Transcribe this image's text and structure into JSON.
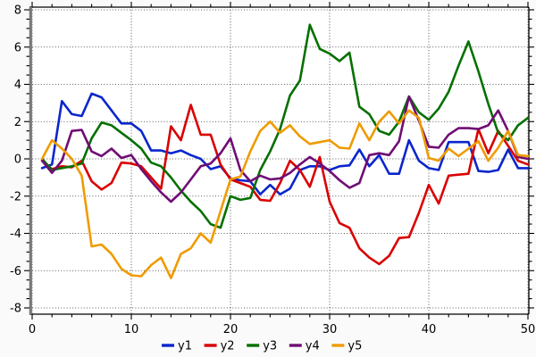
{
  "chart_data": {
    "type": "line",
    "title": "",
    "xlabel": "",
    "ylabel": "",
    "xlim": [
      0,
      50
    ],
    "ylim": [
      -8,
      8
    ],
    "x_major_ticks": [
      0,
      10,
      20,
      30,
      40,
      50
    ],
    "y_major_ticks": [
      -8,
      -6,
      -4,
      -2,
      0,
      2,
      4,
      6,
      8
    ],
    "x_minor_step": 2,
    "y_minor_step": 0.5,
    "grid": "dotted-major",
    "legend_position": "bottom-center",
    "colors": {
      "frame": "#000000",
      "left_spine": "#7a7a7a",
      "grid": "#2a2a2a",
      "plot_bg": "#ffffff",
      "outer_bg": "#fafafa"
    },
    "x": [
      1,
      2,
      3,
      4,
      5,
      6,
      7,
      8,
      9,
      10,
      11,
      12,
      13,
      14,
      15,
      16,
      17,
      18,
      19,
      20,
      21,
      22,
      23,
      24,
      25,
      26,
      27,
      28,
      29,
      30,
      31,
      32,
      33,
      34,
      35,
      36,
      37,
      38,
      39,
      40,
      41,
      42,
      43,
      44,
      45,
      46,
      47,
      48,
      49,
      50
    ],
    "series": [
      {
        "name": "y1",
        "color": "#0a26cc",
        "values": [
          -0.5,
          -0.3,
          3.1,
          2.4,
          2.3,
          3.5,
          3.3,
          2.6,
          1.9,
          1.9,
          1.5,
          0.45,
          0.45,
          0.3,
          0.45,
          0.2,
          0.0,
          -0.55,
          -0.4,
          -1.05,
          -1.15,
          -1.2,
          -1.9,
          -1.4,
          -1.9,
          -1.6,
          -0.6,
          -0.4,
          -0.4,
          -0.6,
          -0.4,
          -0.35,
          0.5,
          -0.4,
          0.2,
          -0.8,
          -0.8,
          1.0,
          -0.1,
          -0.5,
          -0.6,
          0.9,
          0.9,
          0.9,
          -0.65,
          -0.7,
          -0.6,
          0.5,
          -0.5,
          -0.5
        ]
      },
      {
        "name": "y2",
        "color": "#d90000",
        "values": [
          -0.1,
          -0.55,
          -0.4,
          -0.45,
          -0.1,
          -1.2,
          -1.65,
          -1.3,
          -0.2,
          -0.25,
          -0.4,
          -1.0,
          -1.6,
          1.75,
          1.0,
          2.9,
          1.3,
          1.3,
          -0.3,
          -1.1,
          -1.3,
          -1.5,
          -2.2,
          -2.25,
          -1.3,
          -0.1,
          -0.6,
          -1.5,
          0.1,
          -2.3,
          -3.45,
          -3.7,
          -4.8,
          -5.3,
          -5.65,
          -5.2,
          -4.25,
          -4.2,
          -2.9,
          -1.4,
          -2.4,
          -0.9,
          -0.85,
          -0.8,
          1.6,
          0.3,
          1.5,
          0.7,
          -0.1,
          -0.3
        ]
      },
      {
        "name": "y3",
        "color": "#067000",
        "values": [
          0.0,
          -0.6,
          -0.5,
          -0.4,
          -0.25,
          1.1,
          1.95,
          1.8,
          1.4,
          1.0,
          0.55,
          -0.2,
          -0.4,
          -1.0,
          -1.7,
          -2.3,
          -2.8,
          -3.5,
          -3.7,
          -2.0,
          -2.2,
          -2.1,
          -0.6,
          0.4,
          1.6,
          3.4,
          4.2,
          7.2,
          5.9,
          5.65,
          5.25,
          5.7,
          2.8,
          2.4,
          1.5,
          1.3,
          2.0,
          3.35,
          2.5,
          2.1,
          2.7,
          3.6,
          5.0,
          6.3,
          4.7,
          2.95,
          1.4,
          1.0,
          1.8,
          2.2
        ]
      },
      {
        "name": "y4",
        "color": "#700d75",
        "values": [
          -0.1,
          -0.75,
          -0.1,
          1.5,
          1.55,
          0.4,
          0.15,
          0.55,
          0.05,
          0.2,
          -0.55,
          -1.2,
          -1.8,
          -2.3,
          -1.8,
          -1.1,
          -0.4,
          -0.25,
          0.3,
          1.1,
          -0.6,
          -1.2,
          -0.9,
          -1.1,
          -1.05,
          -0.75,
          -0.3,
          0.1,
          -0.25,
          -0.65,
          -1.15,
          -1.55,
          -1.3,
          0.2,
          0.3,
          0.2,
          0.95,
          3.35,
          2.05,
          0.65,
          0.6,
          1.3,
          1.65,
          1.65,
          1.6,
          1.8,
          2.6,
          1.5,
          0.1,
          0.0
        ]
      },
      {
        "name": "y5",
        "color": "#ef9b00",
        "values": [
          0.0,
          1.0,
          0.55,
          0.0,
          -0.9,
          -4.7,
          -4.6,
          -5.1,
          -5.9,
          -6.25,
          -6.3,
          -5.7,
          -5.3,
          -6.4,
          -5.1,
          -4.8,
          -4.0,
          -4.5,
          -2.8,
          -1.1,
          -0.95,
          0.4,
          1.5,
          2.0,
          1.4,
          1.8,
          1.2,
          0.8,
          0.9,
          1.0,
          0.6,
          0.55,
          1.9,
          1.0,
          2.0,
          2.55,
          1.9,
          2.6,
          2.2,
          0.05,
          -0.1,
          0.55,
          0.15,
          0.55,
          0.95,
          -0.1,
          0.6,
          1.5,
          0.2,
          0.15
        ]
      }
    ],
    "legend": {
      "items": [
        {
          "label": "y1",
          "color": "#0a26cc"
        },
        {
          "label": "y2",
          "color": "#d90000"
        },
        {
          "label": "y3",
          "color": "#067000"
        },
        {
          "label": "y4",
          "color": "#700d75"
        },
        {
          "label": "y5",
          "color": "#ef9b00"
        }
      ]
    }
  }
}
